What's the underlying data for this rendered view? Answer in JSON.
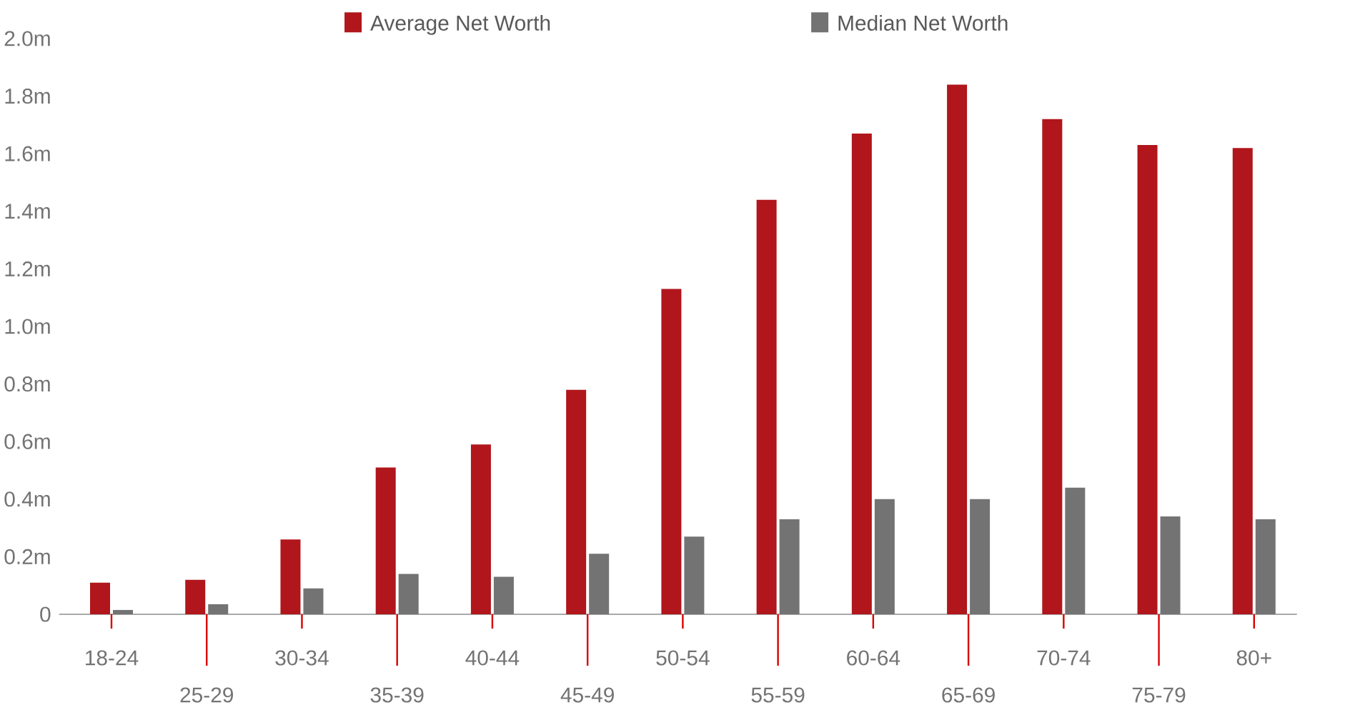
{
  "chart_data": {
    "type": "bar",
    "categories": [
      "18-24",
      "25-29",
      "30-34",
      "35-39",
      "40-44",
      "45-49",
      "50-54",
      "55-59",
      "60-64",
      "65-69",
      "70-74",
      "75-79",
      "80+"
    ],
    "series": [
      {
        "name": "Average Net Worth",
        "color": "#b0161b",
        "values": [
          0.11,
          0.12,
          0.26,
          0.51,
          0.59,
          0.78,
          1.13,
          1.44,
          1.67,
          1.84,
          1.72,
          1.63,
          1.62
        ]
      },
      {
        "name": "Median Net Worth",
        "color": "#737373",
        "values": [
          0.015,
          0.035,
          0.09,
          0.14,
          0.13,
          0.21,
          0.27,
          0.33,
          0.4,
          0.4,
          0.44,
          0.34,
          0.33
        ]
      }
    ],
    "ylim": [
      0,
      2.0
    ],
    "yticks": [
      0,
      {
        "value": 0.2,
        "label": "0.2m"
      },
      {
        "value": 0.4,
        "label": "0.4m"
      },
      {
        "value": 0.6,
        "label": "0.6m"
      },
      {
        "value": 0.8,
        "label": "0.8m"
      },
      {
        "value": 1.0,
        "label": "1.0m"
      },
      {
        "value": 1.2,
        "label": "1.2m"
      },
      {
        "value": 1.4,
        "label": "1.4m"
      },
      {
        "value": 1.6,
        "label": "1.6m"
      },
      {
        "value": 1.8,
        "label": "1.8m"
      },
      {
        "value": 2.0,
        "label": "2.0m"
      }
    ],
    "legend": "top"
  }
}
